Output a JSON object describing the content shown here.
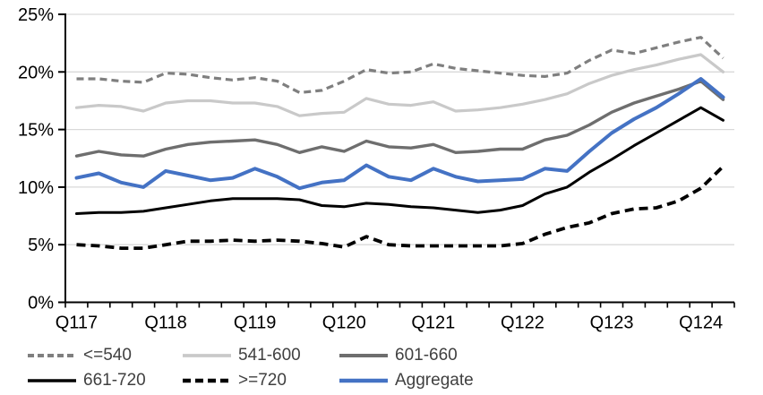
{
  "chart_data": {
    "type": "line",
    "title": "",
    "xlabel": "",
    "ylabel": "",
    "ylim": [
      0,
      25
    ],
    "grid": "horizontal",
    "legend_position": "bottom",
    "y_tick_values": [
      0,
      5,
      10,
      15,
      20,
      25
    ],
    "y_tick_labels": [
      "0%",
      "5%",
      "10%",
      "15%",
      "20%",
      "25%"
    ],
    "x_tick_labels": [
      "Q117",
      "Q118",
      "Q119",
      "Q120",
      "Q121",
      "Q122",
      "Q123",
      "Q124"
    ],
    "x_label_every": 4,
    "n_points": 30,
    "series": [
      {
        "name": "<=540",
        "color": "#7F7F7F",
        "dash": "8,5",
        "width": 3.2,
        "values": [
          19.4,
          19.4,
          19.2,
          19.1,
          19.9,
          19.8,
          19.5,
          19.3,
          19.5,
          19.2,
          18.2,
          18.4,
          19.2,
          20.2,
          19.9,
          20.0,
          20.7,
          20.3,
          20.1,
          19.9,
          19.7,
          19.6,
          19.9,
          21.0,
          21.9,
          21.6,
          22.1,
          22.6,
          23.0,
          21.2
        ]
      },
      {
        "name": "541-600",
        "color": "#C9C9C9",
        "dash": "",
        "width": 3.2,
        "values": [
          16.9,
          17.1,
          17.0,
          16.6,
          17.3,
          17.5,
          17.5,
          17.3,
          17.3,
          17.0,
          16.2,
          16.4,
          16.5,
          17.7,
          17.2,
          17.1,
          17.4,
          16.6,
          16.7,
          16.9,
          17.2,
          17.6,
          18.1,
          19.0,
          19.7,
          20.2,
          20.6,
          21.1,
          21.5,
          20.0
        ]
      },
      {
        "name": "601-660",
        "color": "#6E6E6E",
        "dash": "",
        "width": 3.4,
        "values": [
          12.7,
          13.1,
          12.8,
          12.7,
          13.3,
          13.7,
          13.9,
          14.0,
          14.1,
          13.7,
          13.0,
          13.5,
          13.1,
          14.0,
          13.5,
          13.4,
          13.7,
          13.0,
          13.1,
          13.3,
          13.3,
          14.1,
          14.5,
          15.4,
          16.5,
          17.3,
          17.9,
          18.5,
          19.2,
          17.6
        ]
      },
      {
        "name": "661-720",
        "color": "#000000",
        "dash": "",
        "width": 3.0,
        "values": [
          7.7,
          7.8,
          7.8,
          7.9,
          8.2,
          8.5,
          8.8,
          9.0,
          9.0,
          9.0,
          8.9,
          8.4,
          8.3,
          8.6,
          8.5,
          8.3,
          8.2,
          8.0,
          7.8,
          8.0,
          8.4,
          9.4,
          10.0,
          11.3,
          12.4,
          13.6,
          14.7,
          15.8,
          16.9,
          15.8
        ]
      },
      {
        "name": ">=720",
        "color": "#000000",
        "dash": "10,6",
        "width": 3.8,
        "values": [
          5.0,
          4.9,
          4.7,
          4.7,
          5.0,
          5.3,
          5.3,
          5.4,
          5.3,
          5.4,
          5.3,
          5.1,
          4.8,
          5.7,
          5.0,
          4.9,
          4.9,
          4.9,
          4.9,
          4.9,
          5.1,
          5.9,
          6.5,
          6.9,
          7.7,
          8.1,
          8.2,
          8.8,
          9.9,
          11.8
        ]
      },
      {
        "name": "Aggregate",
        "color": "#4472C4",
        "dash": "",
        "width": 4.0,
        "values": [
          10.8,
          11.2,
          10.4,
          10.0,
          11.4,
          11.0,
          10.6,
          10.8,
          11.6,
          10.9,
          9.9,
          10.4,
          10.6,
          11.9,
          10.9,
          10.6,
          11.6,
          10.9,
          10.5,
          10.6,
          10.7,
          11.6,
          11.4,
          13.1,
          14.7,
          15.9,
          16.9,
          18.1,
          19.4,
          17.8
        ]
      }
    ]
  },
  "axes": {
    "axis_color": "#000000",
    "gridline_color": "#D9D9D9",
    "label_color": "#000000",
    "legend_text_color": "#404040"
  }
}
